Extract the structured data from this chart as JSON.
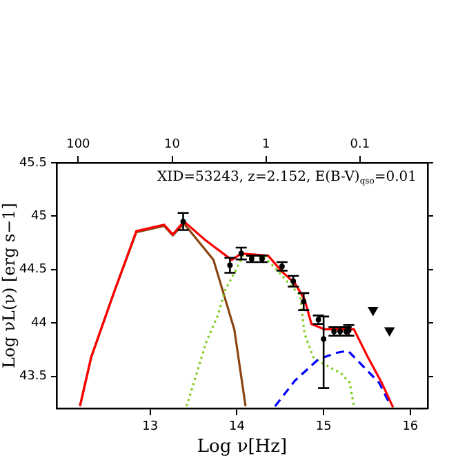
{
  "chart_data": {
    "type": "line",
    "title": "XID=53243, z=2.152, E(B-V)$_{qso}$=0.01",
    "xlabel": "Log ν[Hz]",
    "ylabel": "Log νL(ν) [erg s−1]",
    "xlim": [
      11.92,
      16.2
    ],
    "xticks": [
      13,
      14,
      15,
      16
    ],
    "ylim": [
      43.2,
      45.5
    ],
    "yticks": [
      43.5,
      44,
      44.5,
      45,
      45.5
    ],
    "x2lim": [
      170,
      0.019
    ],
    "x2ticks": [
      100,
      10,
      1,
      0.1
    ],
    "log": "x2",
    "grid": false,
    "legend": false,
    "series": [
      {
        "color": "#8b4513",
        "line_style": "solid",
        "marker": "none",
        "x": [
          12.19,
          12.32,
          12.58,
          12.84,
          13.16,
          13.26,
          13.39,
          13.73,
          13.97,
          14.1
        ],
        "values": [
          43.22,
          43.68,
          44.28,
          44.85,
          44.91,
          44.82,
          44.93,
          44.59,
          43.94,
          43.22
        ]
      },
      {
        "color": "#7ccd1a",
        "line_style": "dotted",
        "marker": "none",
        "x": [
          13.42,
          13.65,
          13.78,
          13.86,
          13.99,
          14.07,
          14.31,
          14.46,
          14.62,
          14.73,
          14.78,
          14.88,
          14.99,
          15.2,
          15.3,
          15.35
        ],
        "values": [
          43.22,
          43.83,
          44.07,
          44.3,
          44.5,
          44.63,
          44.62,
          44.5,
          44.35,
          44.26,
          43.9,
          43.68,
          43.62,
          43.53,
          43.44,
          43.22
        ]
      },
      {
        "color": "#0000ff",
        "line_style": "dashed",
        "marker": "none",
        "x": [
          14.44,
          14.67,
          14.94,
          15.15,
          15.28,
          15.46,
          15.64,
          15.77
        ],
        "values": [
          43.22,
          43.46,
          43.66,
          43.72,
          43.74,
          43.59,
          43.44,
          43.23
        ]
      },
      {
        "color": "#ff0000",
        "line_style": "solid",
        "marker": "none",
        "x": [
          12.19,
          12.32,
          12.58,
          12.84,
          13.16,
          13.26,
          13.39,
          13.63,
          13.94,
          14.05,
          14.36,
          14.52,
          14.67,
          14.78,
          14.86,
          15.01,
          15.35,
          15.51,
          15.67,
          15.8
        ],
        "values": [
          43.22,
          43.68,
          44.28,
          44.86,
          44.92,
          44.83,
          44.95,
          44.78,
          44.59,
          44.65,
          44.63,
          44.48,
          44.37,
          44.22,
          43.99,
          43.94,
          43.94,
          43.68,
          43.44,
          43.21
        ]
      },
      {
        "type": "scatter",
        "color": "#000000",
        "marker": "circle",
        "x": [
          13.38,
          13.92,
          14.05,
          14.17,
          14.29,
          14.52,
          14.65,
          14.77,
          14.94,
          15.0,
          15.12,
          15.19,
          15.26,
          15.29
        ],
        "values": [
          44.95,
          44.54,
          44.65,
          44.6,
          44.6,
          44.53,
          44.39,
          44.2,
          44.03,
          43.85,
          43.92,
          43.92,
          43.92,
          43.93
        ],
        "errors": [
          0.08,
          0.07,
          0.055,
          0.03,
          0.03,
          0.04,
          0.05,
          0.08,
          0.04,
          [
            43.39,
            44.06
          ],
          0.04,
          0.04,
          0.04,
          0.05
        ]
      },
      {
        "type": "scatter",
        "color": "#000000",
        "marker": "triangle",
        "x": [
          15.57,
          15.76
        ],
        "values": [
          44.12,
          43.93
        ]
      }
    ]
  }
}
